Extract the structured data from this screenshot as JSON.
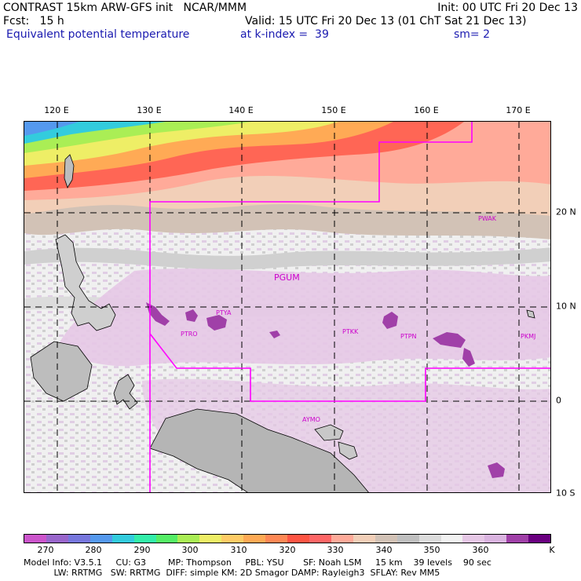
{
  "header": {
    "title_left": "CONTRAST 15km ARW-GFS init   NCAR/MMM",
    "init": "Init: 00 UTC Fri 20 Dec 13",
    "fcst": "Fcst:   15 h",
    "valid": "Valid: 15 UTC Fri 20 Dec 13 (01 ChT Sat 21 Dec 13)",
    "field": "Equivalent potential temperature",
    "level": "at k-index =  39",
    "smooth": "sm= 2"
  },
  "map": {
    "longitude_labels": [
      "120 E",
      "130 E",
      "140 E",
      "150 E",
      "160 E",
      "170 E"
    ],
    "latitude_labels": [
      "20 N",
      "10 N",
      "0",
      "10 S"
    ],
    "region_labels": [
      "PGUM",
      "PTYA",
      "PTRO",
      "PTKK",
      "PTPN",
      "PKMJ",
      "PWAK",
      "AYMO"
    ],
    "boundary_color": "#ff00ff"
  },
  "colorbar": {
    "labels": [
      "270",
      "280",
      "290",
      "300",
      "310",
      "320",
      "330",
      "340",
      "350",
      "360"
    ],
    "unit": "K",
    "colors": [
      "#cc55cc",
      "#9966cc",
      "#7777dd",
      "#5599ee",
      "#33ccdd",
      "#33eeaa",
      "#55ee66",
      "#aaee55",
      "#eeee66",
      "#ffcc66",
      "#ffaa55",
      "#ff8855",
      "#ff5544",
      "#ff6666",
      "#ffaa99",
      "#f2cfb8",
      "#d2c2b6",
      "#bfbfbf",
      "#dcdcdc",
      "#f2f2f2",
      "#e6c8e6",
      "#dab4e0",
      "#a040a8",
      "#6a0080"
    ]
  },
  "model_info": {
    "line1": "Model Info: V3.5.1     CU: G3        MP: Thompson     PBL: YSU       SF: Noah LSM     15 km    39 levels    90 sec",
    "line2": "           LW: RRTMG   SW: RRTMG  DIFF: simple KM: 2D Smagor DAMP: Rayleigh3  SFLAY: Rev MM5"
  }
}
